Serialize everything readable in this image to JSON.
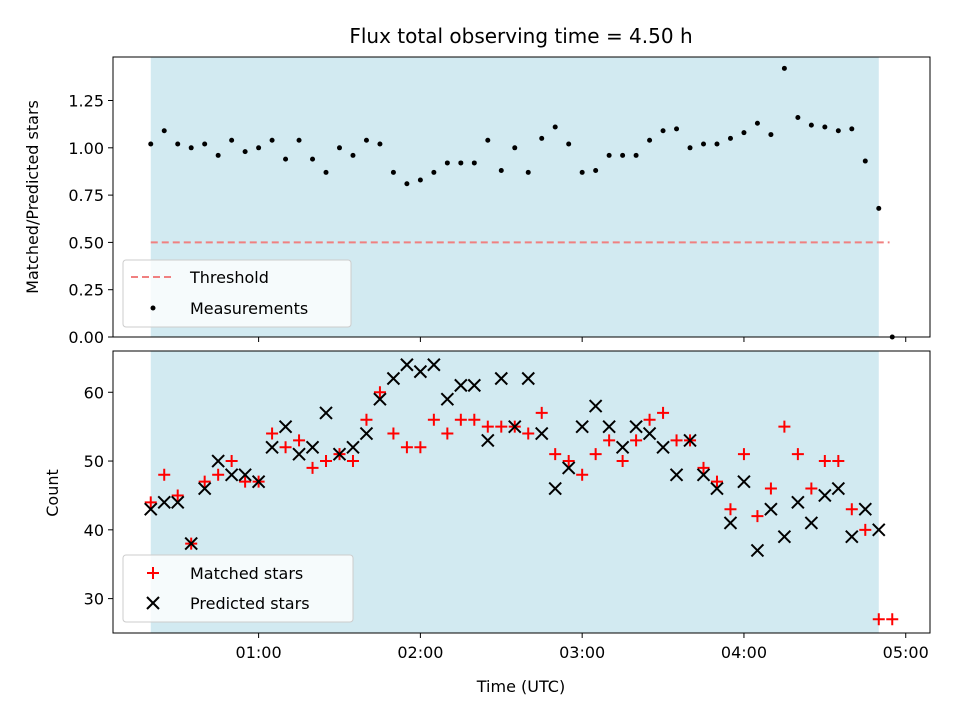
{
  "chart_data": [
    {
      "type": "scatter",
      "title": "Flux total observing time = 4.50 h",
      "xlabel": "",
      "ylabel": "Matched/Predicted stars",
      "ylim": [
        0,
        1.48
      ],
      "yticks": [
        0.0,
        0.25,
        0.5,
        0.75,
        1.0,
        1.25
      ],
      "ytick_labels": [
        "0.00",
        "0.25",
        "0.50",
        "0.75",
        "1.00",
        "1.25"
      ],
      "xlim_minutes": [
        6,
        309
      ],
      "xticks_minutes": [
        60,
        120,
        180,
        240,
        300
      ],
      "shaded_span_minutes": [
        20,
        290
      ],
      "threshold": 0.5,
      "threshold_end_minutes": 294,
      "legend": [
        "Threshold",
        "Measurements"
      ],
      "legend_position": "lower-left",
      "series": [
        {
          "name": "Measurements",
          "x": [
            20,
            25,
            30,
            35,
            40,
            45,
            50,
            55,
            60,
            65,
            70,
            75,
            80,
            85,
            90,
            95,
            100,
            105,
            110,
            115,
            120,
            125,
            130,
            135,
            140,
            145,
            150,
            155,
            160,
            165,
            170,
            175,
            180,
            185,
            190,
            195,
            200,
            205,
            210,
            215,
            220,
            225,
            230,
            235,
            240,
            245,
            250,
            255,
            260,
            265,
            270,
            275,
            280,
            285,
            290,
            295
          ],
          "y": [
            1.02,
            1.09,
            1.02,
            1.0,
            1.02,
            0.96,
            1.04,
            0.98,
            1.0,
            1.04,
            0.94,
            1.04,
            0.94,
            0.87,
            1.0,
            0.96,
            1.04,
            1.02,
            0.87,
            0.81,
            0.83,
            0.87,
            0.92,
            0.92,
            0.92,
            1.04,
            0.88,
            1.0,
            0.87,
            1.05,
            1.11,
            1.02,
            0.87,
            0.88,
            0.96,
            0.96,
            0.96,
            1.04,
            1.09,
            1.1,
            1.0,
            1.02,
            1.02,
            1.05,
            1.08,
            1.13,
            1.07,
            1.42,
            1.16,
            1.12,
            1.11,
            1.09,
            1.1,
            0.93,
            0.68,
            0.0
          ]
        }
      ]
    },
    {
      "type": "scatter",
      "title": "",
      "xlabel": "Time (UTC)",
      "ylabel": "Count",
      "ylim": [
        25,
        66
      ],
      "yticks": [
        30,
        40,
        50,
        60
      ],
      "ytick_labels": [
        "30",
        "40",
        "50",
        "60"
      ],
      "xlim_minutes": [
        6,
        309
      ],
      "xticks_minutes": [
        60,
        120,
        180,
        240,
        300
      ],
      "xtick_labels": [
        "01:00",
        "02:00",
        "03:00",
        "04:00",
        "05:00"
      ],
      "shaded_span_minutes": [
        20,
        290
      ],
      "legend": [
        "Matched stars",
        "Predicted stars"
      ],
      "legend_position": "lower-left",
      "series": [
        {
          "name": "Matched stars",
          "x": [
            20,
            25,
            30,
            35,
            40,
            45,
            50,
            55,
            60,
            65,
            70,
            75,
            80,
            85,
            90,
            95,
            100,
            105,
            110,
            115,
            120,
            125,
            130,
            135,
            140,
            145,
            150,
            155,
            160,
            165,
            170,
            175,
            180,
            185,
            190,
            195,
            200,
            205,
            210,
            215,
            220,
            225,
            230,
            235,
            240,
            245,
            250,
            255,
            260,
            265,
            270,
            275,
            280,
            285,
            290,
            295
          ],
          "y": [
            44,
            48,
            45,
            38,
            47,
            48,
            50,
            47,
            47,
            54,
            52,
            53,
            49,
            50,
            51,
            50,
            56,
            60,
            54,
            52,
            52,
            56,
            54,
            56,
            56,
            55,
            55,
            55,
            54,
            57,
            51,
            50,
            48,
            51,
            53,
            50,
            53,
            56,
            57,
            53,
            53,
            49,
            47,
            43,
            51,
            42,
            46,
            55,
            51,
            46,
            50,
            50,
            43,
            40,
            27,
            27
          ]
        },
        {
          "name": "Predicted stars",
          "x": [
            20,
            25,
            30,
            35,
            40,
            45,
            50,
            55,
            60,
            65,
            70,
            75,
            80,
            85,
            90,
            95,
            100,
            105,
            110,
            115,
            120,
            125,
            130,
            135,
            140,
            145,
            150,
            155,
            160,
            165,
            170,
            175,
            180,
            185,
            190,
            195,
            200,
            205,
            210,
            215,
            220,
            225,
            230,
            235,
            240,
            245,
            250,
            255,
            260,
            265,
            270,
            275,
            280,
            285,
            290
          ],
          "y": [
            43,
            44,
            44,
            38,
            46,
            50,
            48,
            48,
            47,
            52,
            55,
            51,
            52,
            57,
            51,
            52,
            54,
            59,
            62,
            64,
            63,
            64,
            59,
            61,
            61,
            53,
            62,
            55,
            62,
            54,
            46,
            49,
            55,
            58,
            55,
            52,
            55,
            54,
            52,
            48,
            53,
            48,
            46,
            41,
            47,
            37,
            43,
            39,
            44,
            41,
            45,
            46,
            39,
            43,
            40
          ]
        }
      ]
    }
  ],
  "colors": {
    "shade": "#add8e6",
    "threshold": "#f08080",
    "measurements": "#000000",
    "matched": "#ff0000",
    "predicted": "#000000",
    "axes": "#000000"
  }
}
